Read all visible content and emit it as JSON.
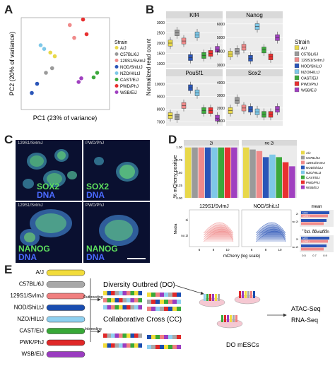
{
  "panels": {
    "a": "A",
    "b": "B",
    "c": "C",
    "d": "D",
    "e": "E"
  },
  "colors": {
    "A/J": "#e8d84a",
    "C57BL/6J": "#9a9a9a",
    "129S1/SvImJ": "#f08a8a",
    "NOD/ShiLtJ": "#2a55b8",
    "NZO/HILtJ": "#7ec8e8",
    "CAST/EiJ": "#3ca83c",
    "PWD/PhJ": "#e83030",
    "WSB/EiJ": "#a040c0"
  },
  "panel_a": {
    "xlabel": "PC1 (23% of variance)",
    "ylabel": "PC2 (20% of variance)",
    "legend_title": "Strain",
    "strains": [
      "A/J",
      "C57BL/6J",
      "129S1/SvImJ",
      "NOD/ShiLtJ",
      "NZO/HILtJ",
      "CAST/EiJ",
      "PWD/PhJ",
      "WSB/EiJ"
    ],
    "chart_data": {
      "type": "scatter",
      "xlabel": "PC1 (23% of variance)",
      "ylabel": "PC2 (20% of variance)",
      "series": [
        {
          "name": "A/J",
          "points": [
            [
              0.33,
              0.62
            ],
            [
              0.38,
              0.58
            ]
          ]
        },
        {
          "name": "C57BL/6J",
          "points": [
            [
              0.35,
              0.45
            ],
            [
              0.28,
              0.4
            ]
          ]
        },
        {
          "name": "129S1/SvImJ",
          "points": [
            [
              0.55,
              0.92
            ],
            [
              0.6,
              0.78
            ]
          ]
        },
        {
          "name": "NOD/ShiLtJ",
          "points": [
            [
              0.12,
              0.18
            ],
            [
              0.18,
              0.28
            ]
          ]
        },
        {
          "name": "NZO/HILtJ",
          "points": [
            [
              0.22,
              0.7
            ],
            [
              0.26,
              0.66
            ]
          ]
        },
        {
          "name": "CAST/EiJ",
          "points": [
            [
              0.82,
              0.35
            ],
            [
              0.86,
              0.4
            ]
          ]
        },
        {
          "name": "PWD/PhJ",
          "points": [
            [
              0.7,
              0.98
            ],
            [
              0.74,
              0.82
            ]
          ]
        },
        {
          "name": "WSB/EiJ",
          "points": [
            [
              0.65,
              0.3
            ],
            [
              0.68,
              0.34
            ]
          ]
        }
      ]
    }
  },
  "panel_b": {
    "ylabel": "Normalized read count",
    "legend_title": "Strain",
    "facets": [
      {
        "title": "Klf4",
        "yticks": [
          "1000",
          "1500",
          "2000",
          "2500",
          "3000"
        ]
      },
      {
        "title": "Nanog",
        "yticks": [
          "3000",
          "4000",
          "5000",
          "6000"
        ]
      },
      {
        "title": "Pou5f1",
        "yticks": [
          "7000",
          "8000",
          "9000",
          "10000"
        ]
      },
      {
        "title": "Sox2",
        "yticks": [
          "1000",
          "2000",
          "3000",
          "4000"
        ]
      }
    ],
    "chart_data": {
      "type": "box",
      "categories": [
        "A/J",
        "C57BL/6J",
        "129S1/SvImJ",
        "NOD/ShiLtJ",
        "NZO/HILtJ",
        "CAST/EiJ",
        "PWD/PhJ",
        "WSB/EiJ"
      ],
      "series": [
        {
          "name": "Klf4",
          "medians": [
            2000,
            2500,
            2100,
            1300,
            2400,
            1400,
            1500,
            1700
          ]
        },
        {
          "name": "Nanog",
          "medians": [
            3800,
            4000,
            4300,
            3500,
            5800,
            4100,
            3600,
            5000
          ]
        },
        {
          "name": "Pou5f1",
          "medians": [
            7500,
            7400,
            8300,
            9700,
            9300,
            7900,
            7900,
            7300
          ]
        },
        {
          "name": "Sox2",
          "medians": [
            1800,
            2600,
            2000,
            1900,
            1700,
            1500,
            1500,
            1900
          ]
        }
      ]
    }
  },
  "panel_c": {
    "images": [
      {
        "strain": "129S1/SvImJ",
        "marker": "SOX2",
        "dna": "DNA"
      },
      {
        "strain": "PWD/PhJ",
        "marker": "SOX2",
        "dna": "DNA"
      },
      {
        "strain": "129S1/SvImJ",
        "marker": "NANOG",
        "dna": "DNA"
      },
      {
        "strain": "PWD/PhJ",
        "marker": "NANOG",
        "dna": "DNA"
      }
    ]
  },
  "panel_d": {
    "ylabel": "% mCherry positive",
    "facet_2i": "2i",
    "facet_no2i": "no 2i",
    "yticks": [
      "0.00",
      "0.25",
      "0.50",
      "0.75",
      "1.00"
    ],
    "chart_data": {
      "type": "bar",
      "categories": [
        "A/J",
        "C57BL/6J",
        "129S1/SvImJ",
        "NOD/ShiLtJ",
        "NZO/HILtJ",
        "CAST/EiJ",
        "PWD/PhJ",
        "WSB/EiJ"
      ],
      "series": [
        {
          "name": "2i",
          "values": [
            0.99,
            0.99,
            0.99,
            0.99,
            0.99,
            0.99,
            0.99,
            0.99
          ]
        },
        {
          "name": "no 2i",
          "values": [
            0.99,
            0.95,
            0.92,
            0.8,
            0.85,
            0.8,
            0.7,
            0.62
          ]
        }
      ],
      "ylim": [
        0,
        1
      ]
    },
    "hist_left_title": "129S1/SvImJ",
    "hist_right_title": "NOD/ShiLtJ",
    "hist_xlabel": "mCherry (log scale)",
    "hist_ylabel": "Media",
    "hist_rows": [
      "2i",
      "no 2i"
    ],
    "hist_ticks_left": [
      "6",
      "8",
      "10"
    ],
    "hist_ticks_right": [
      "6",
      "8",
      "10"
    ],
    "mean_title": "mean",
    "sd_title": "std. deviation",
    "mean_ticks": [
      "7.5",
      "8.0",
      "8.5"
    ],
    "sd_ticks": [
      "0.5",
      "0.7",
      "0.9"
    ],
    "mini_labels": [
      "NOD",
      "129S1"
    ],
    "mini_rows": [
      "2i",
      "no 2i"
    ]
  },
  "panel_e": {
    "strains": [
      "A/J",
      "C57BL/6J",
      "129S1/SvImJ",
      "NOD/ShiLtJ",
      "NZO/HILtJ",
      "CAST/EiJ",
      "PWK/PhJ",
      "WSB/EiJ"
    ],
    "do_title": "Diversity Outbred (DO)",
    "cc_title": "Collaborative Cross (CC)",
    "outbreeding": "Outbreeding",
    "inbreeding": "Inbreeding",
    "mesc_label": "DO mESCs",
    "assay1": "ATAC-Seq",
    "assay2": "RNA-Seq"
  }
}
